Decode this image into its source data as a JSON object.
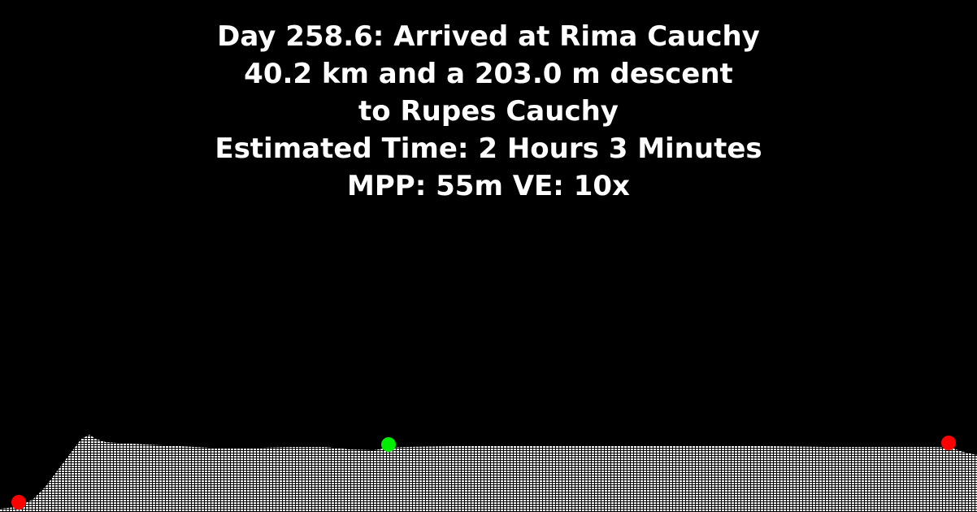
{
  "caption": {
    "line1": "Day 258.6: Arrived at Rima Cauchy",
    "line2": "40.2 km and a 203.0 m descent",
    "line3": "to Rupes Cauchy",
    "line4": "Estimated Time: 2 Hours 3 Minutes",
    "line5": "MPP: 55m VE: 10x"
  },
  "colors": {
    "background": "#000000",
    "text": "#ffffff",
    "terrain_fill": "#ffffff",
    "current_marker": "#00ee00",
    "endpoint_marker": "#ff0000"
  },
  "markers": {
    "start_fraction": 0.0,
    "current_fraction": 0.395,
    "end_fraction": 0.97
  }
}
